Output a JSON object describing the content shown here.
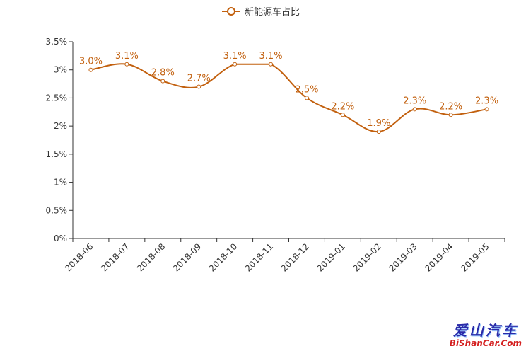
{
  "chart_data": {
    "type": "line",
    "title": "",
    "legend": "top-center",
    "categories": [
      "2018-06",
      "2018-07",
      "2018-08",
      "2018-09",
      "2018-10",
      "2018-11",
      "2018-12",
      "2019-01",
      "2019-02",
      "2019-03",
      "2019-04",
      "2019-05"
    ],
    "series": [
      {
        "name": "新能源车占比",
        "values": [
          3.0,
          3.1,
          2.8,
          2.7,
          3.1,
          3.1,
          2.5,
          2.2,
          1.9,
          2.3,
          2.2,
          2.3
        ],
        "labels": [
          "3.0%",
          "3.1%",
          "2.8%",
          "2.7%",
          "3.1%",
          "3.1%",
          "2.5%",
          "2.2%",
          "1.9%",
          "2.3%",
          "2.2%",
          "2.3%"
        ],
        "color": "#c2600e"
      }
    ],
    "ylim": [
      0,
      3.5
    ],
    "yticks": [
      0,
      0.5,
      1,
      1.5,
      2,
      2.5,
      3,
      3.5
    ],
    "ytick_labels": [
      "0%",
      "0.5%",
      "1%",
      "1.5%",
      "2%",
      "2.5%",
      "3%",
      "3.5%"
    ],
    "xlabel": "",
    "ylabel": "",
    "grid": false
  },
  "watermark": {
    "line1": "爱山汽车",
    "line2": "BiShanCar.Com"
  }
}
